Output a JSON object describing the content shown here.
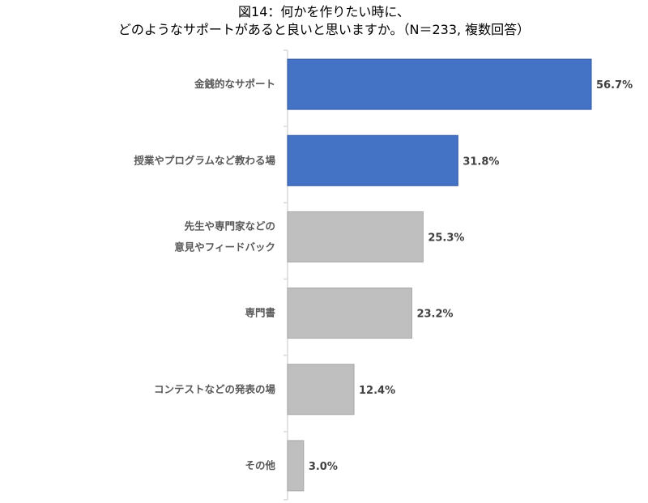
{
  "chart_data": {
    "type": "bar",
    "orientation": "horizontal",
    "title_lines": [
      "図14：何かを作りたい時に、",
      "どのようなサポートがあると良いと思いますか。（N＝233, 複数回答）"
    ],
    "categories": [
      [
        "金銭的なサポート"
      ],
      [
        "授業やプログラムなど教わる場"
      ],
      [
        "先生や専門家などの",
        "意見やフィードバック"
      ],
      [
        "専門書"
      ],
      [
        "コンテストなどの発表の場"
      ],
      [
        "その他"
      ]
    ],
    "values": [
      56.7,
      31.8,
      25.3,
      23.2,
      12.4,
      3.0
    ],
    "value_labels": [
      "56.7%",
      "31.8%",
      "25.3%",
      "23.2%",
      "12.4%",
      "3.0%"
    ],
    "highlight": [
      true,
      true,
      false,
      false,
      false,
      false
    ],
    "colors": {
      "highlight_fill": "#4472C4",
      "highlight_stroke": "#2F55A4",
      "default_fill": "#BFBFBF",
      "default_stroke": "#A6A6A6",
      "axis": "#D9D9D9"
    },
    "xlim": [
      0,
      60
    ],
    "grid": false,
    "legend": "none"
  }
}
